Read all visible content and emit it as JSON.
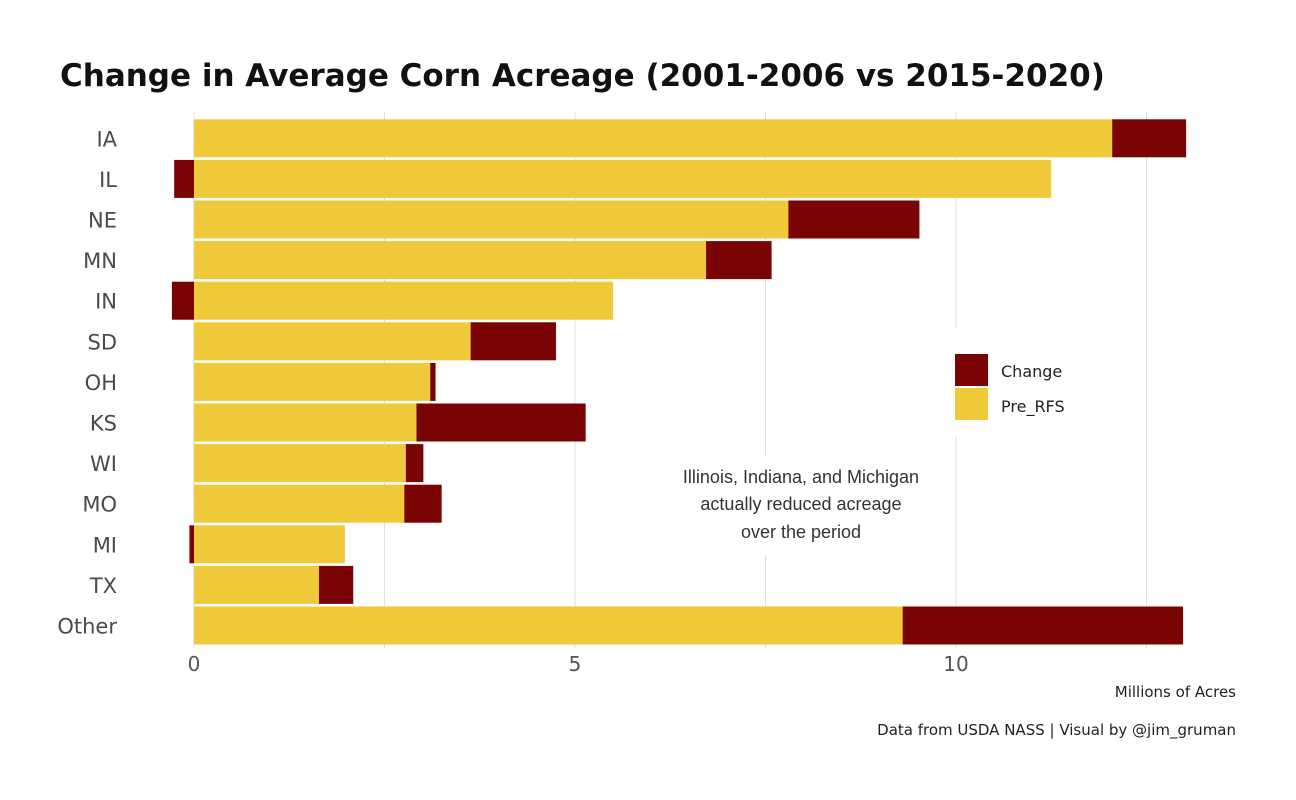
{
  "chart_data": {
    "type": "bar",
    "orientation": "horizontal",
    "stacked": true,
    "title": "Change in Average Corn Acreage (2001-2006 vs 2015-2020)",
    "xlabel": "Millions of Acres",
    "caption": "Data from USDA NASS | Visual by @jim_gruman",
    "xlim": [
      0,
      13.2
    ],
    "xticks": [
      0,
      5,
      10
    ],
    "grid": true,
    "categories": [
      "IA",
      "IL",
      "NE",
      "MN",
      "IN",
      "SD",
      "OH",
      "KS",
      "WI",
      "MO",
      "MI",
      "TX",
      "Other"
    ],
    "series": [
      {
        "name": "Pre_RFS",
        "color": "#f0c93a",
        "values": [
          12.05,
          11.25,
          7.8,
          6.72,
          5.5,
          3.63,
          3.1,
          2.92,
          2.78,
          2.76,
          1.98,
          1.64,
          9.3
        ]
      },
      {
        "name": "Change",
        "color": "#7a0303",
        "values": [
          0.97,
          -0.26,
          1.72,
          0.86,
          -0.29,
          1.12,
          0.07,
          2.22,
          0.23,
          0.49,
          -0.06,
          0.45,
          3.68
        ]
      }
    ],
    "legend": {
      "placement": "right-center",
      "entries": [
        {
          "label": "Change",
          "color": "#7a0303"
        },
        {
          "label": "Pre_RFS",
          "color": "#f0c93a"
        }
      ]
    },
    "annotation": {
      "lines": [
        "Illinois, Indiana, and Michigan",
        "actually reduced acreage",
        "over the period"
      ]
    }
  }
}
